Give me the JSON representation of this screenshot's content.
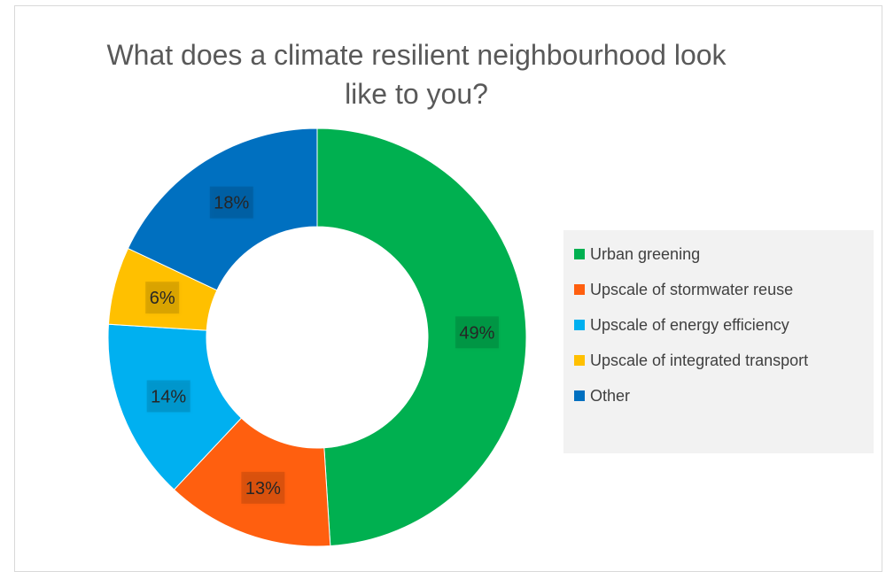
{
  "chart_data": {
    "type": "pie",
    "subtype": "donut",
    "title": "What does a climate resilient neighbourhood look like to you?",
    "title_lines": [
      "What does a climate resilient neighbourhood look",
      "like to you?"
    ],
    "categories": [
      "Urban greening",
      "Upscale of stormwater reuse",
      "Upscale of energy efficiency",
      "Upscale of integrated transport",
      "Other"
    ],
    "values": [
      49,
      13,
      14,
      6,
      18
    ],
    "data_labels": [
      "49%",
      "13%",
      "14%",
      "6%",
      "18%"
    ],
    "colors": [
      "#00b050",
      "#ff5f0f",
      "#00b0f0",
      "#ffc000",
      "#0070c0"
    ],
    "legend_position": "right",
    "start_angle": "top, clockwise"
  }
}
